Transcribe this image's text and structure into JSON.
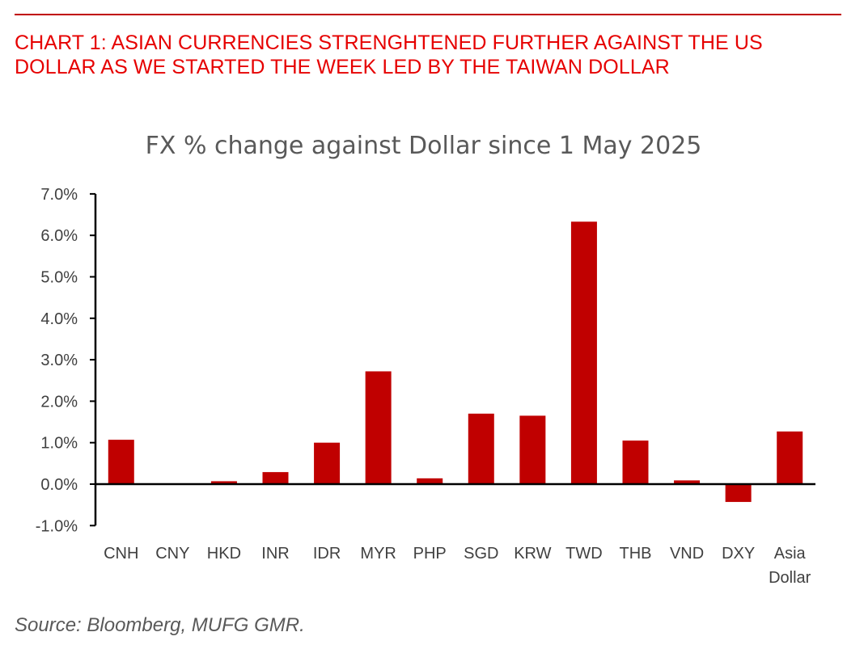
{
  "headline": "CHART 1: ASIAN CURRENCIES STRENGHTENED FURTHER AGAINST THE US DOLLAR AS WE STARTED THE WEEK LED BY THE TAIWAN DOLLAR",
  "source": "Source: Bloomberg, MUFG GMR.",
  "chart_data": {
    "type": "bar",
    "title": "FX % change against Dollar since 1 May 2025",
    "xlabel": "",
    "ylabel": "",
    "ylim": [
      -1.0,
      7.0
    ],
    "yticks": [
      "7.0%",
      "6.0%",
      "5.0%",
      "4.0%",
      "3.0%",
      "2.0%",
      "1.0%",
      "0.0%",
      "-1.0%"
    ],
    "ytick_values": [
      7,
      6,
      5,
      4,
      3,
      2,
      1,
      0,
      -1
    ],
    "categories": [
      "CNH",
      "CNY",
      "HKD",
      "INR",
      "IDR",
      "MYR",
      "PHP",
      "SGD",
      "KRW",
      "TWD",
      "THB",
      "VND",
      "DXY",
      "Asia Dollar"
    ],
    "values": [
      1.07,
      0.0,
      0.07,
      0.29,
      1.0,
      2.72,
      0.14,
      1.7,
      1.65,
      6.33,
      1.05,
      0.09,
      -0.43,
      1.27
    ],
    "grid": false,
    "bar_color": "#c00000"
  }
}
